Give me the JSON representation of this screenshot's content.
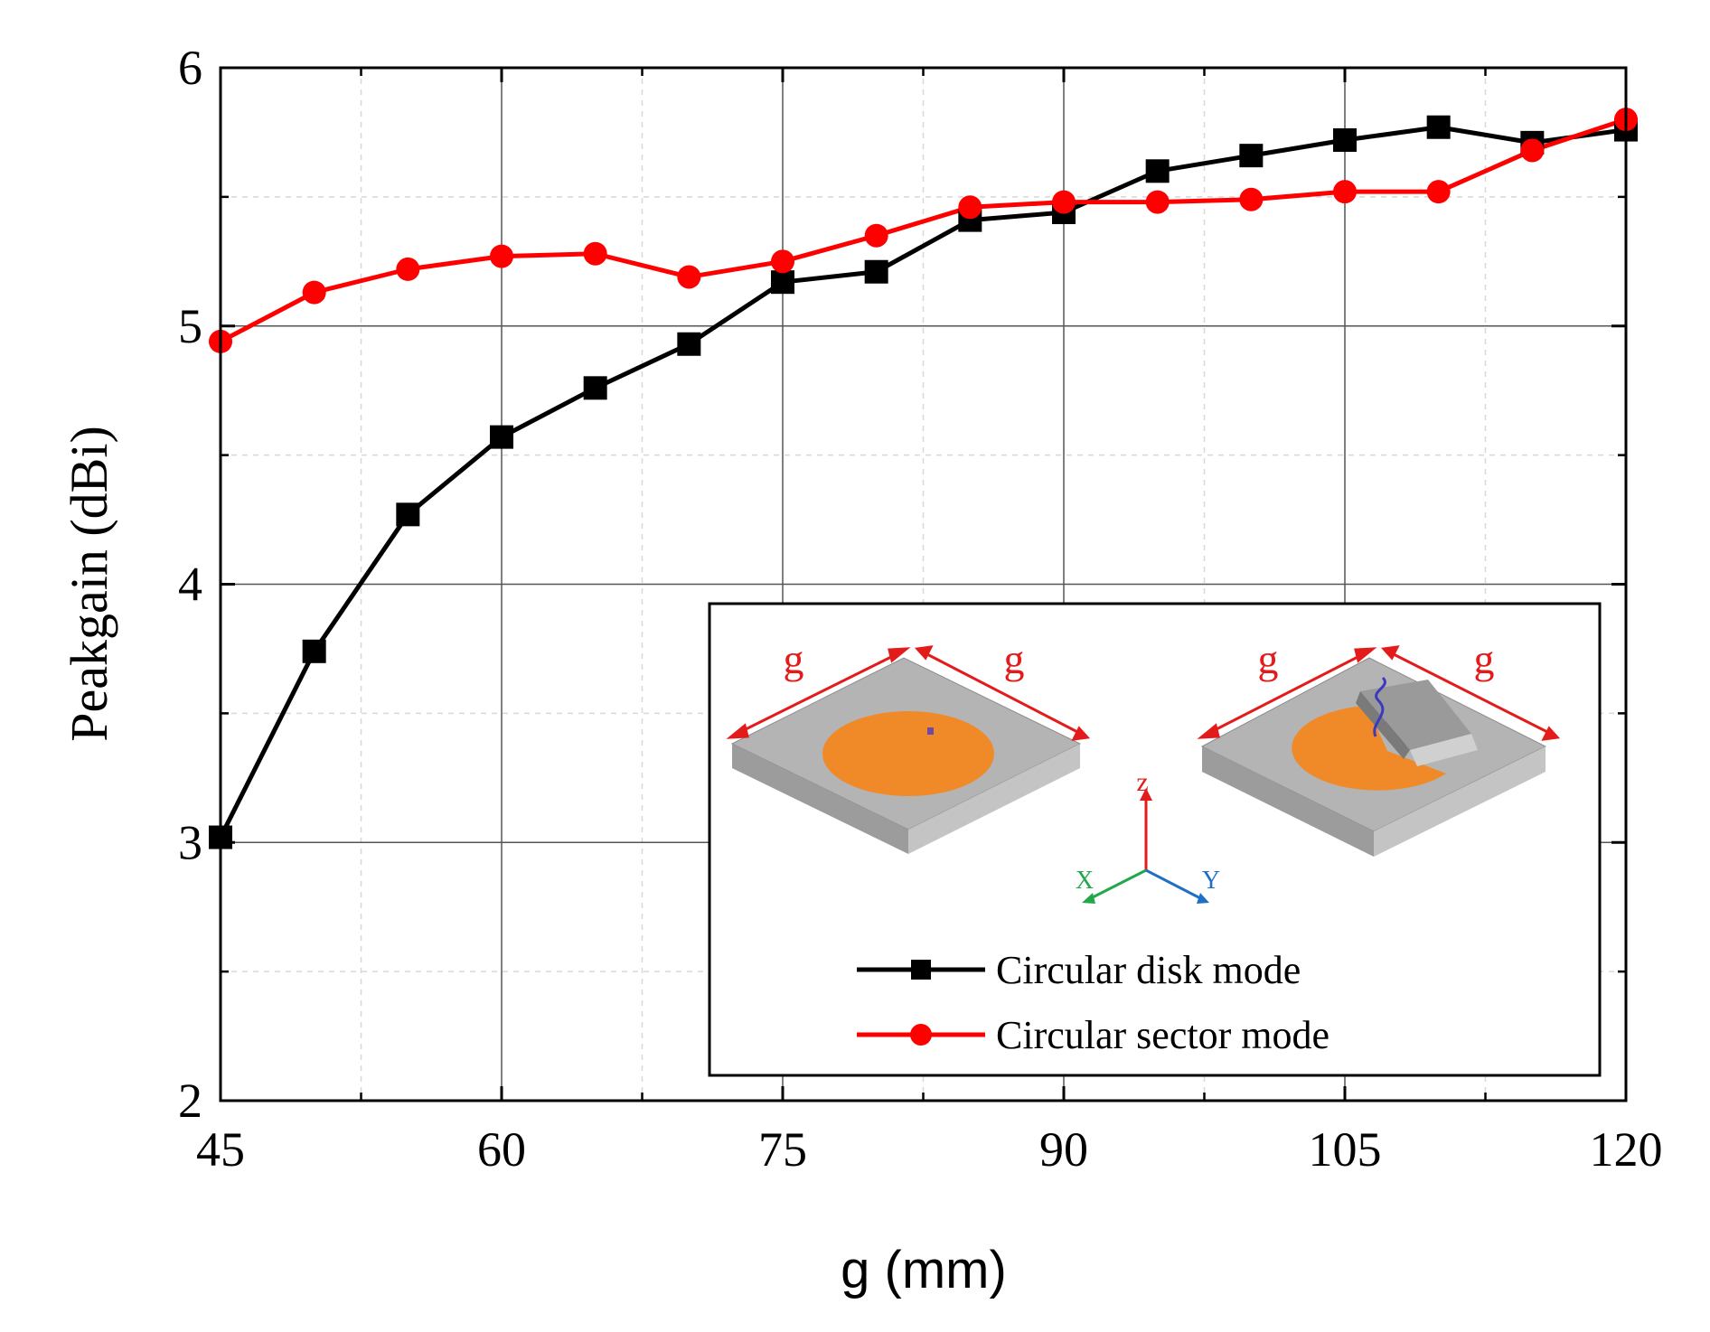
{
  "chart_data": {
    "type": "line",
    "title": "",
    "xlabel": "g (mm)",
    "ylabel": "Peakgain (dBi)",
    "xlim": [
      45,
      120
    ],
    "ylim": [
      2,
      6
    ],
    "xticks": [
      45,
      60,
      75,
      90,
      105,
      120
    ],
    "yticks": [
      2,
      3,
      4,
      5,
      6
    ],
    "grid": true,
    "legend_position": "inside lower-right, within inset panel",
    "x": [
      45,
      50,
      55,
      60,
      65,
      70,
      75,
      80,
      85,
      90,
      95,
      100,
      105,
      110,
      115,
      120
    ],
    "series": [
      {
        "name": "Circular disk mode",
        "color": "#000000",
        "marker": "square",
        "values": [
          3.02,
          3.74,
          4.27,
          4.57,
          4.76,
          4.93,
          5.17,
          5.21,
          5.41,
          5.44,
          5.6,
          5.66,
          5.72,
          5.77,
          5.71,
          5.76
        ]
      },
      {
        "name": "Circular sector mode",
        "color": "#ff0000",
        "marker": "circle",
        "values": [
          4.94,
          5.13,
          5.22,
          5.27,
          5.28,
          5.19,
          5.25,
          5.35,
          5.46,
          5.48,
          5.48,
          5.49,
          5.52,
          5.52,
          5.68,
          5.8
        ]
      }
    ],
    "inset": {
      "dimension_label": "g",
      "axis_labels": {
        "z": "z",
        "x": "X",
        "y": "Y"
      },
      "colors": {
        "dimension": "#e31b1b",
        "z_axis": "#e31b1b",
        "x_axis": "#22a84a",
        "y_axis": "#1f6fc4",
        "patch": "#f08a28",
        "substrate": "#b4b4b4"
      }
    }
  }
}
